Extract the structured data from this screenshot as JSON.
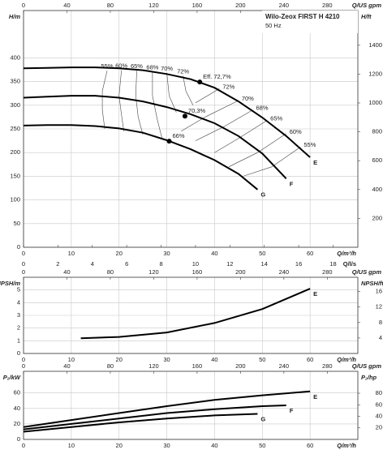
{
  "chart_data": [
    {
      "type": "line",
      "title": "Wilo-Zeox FIRST H 4210",
      "subtitle": "50 Hz",
      "ylabel": "H/m",
      "y2label": "H/ft",
      "xlabel": "Q/m³/h",
      "x2label": "Q/US gpm",
      "x3label": "Q/l/s",
      "xlim": [
        0,
        70
      ],
      "xticks": [
        0,
        10,
        20,
        30,
        40,
        50,
        60
      ],
      "x2lim": [
        0,
        308.2
      ],
      "x2ticks": [
        0,
        40,
        80,
        120,
        160,
        200,
        240,
        280
      ],
      "x3lim": [
        0,
        19.44
      ],
      "x3ticks": [
        0,
        2,
        4,
        6,
        8,
        10,
        12,
        14,
        16,
        18
      ],
      "ylim": [
        0,
        500
      ],
      "yticks": [
        0,
        50,
        100,
        150,
        200,
        250,
        300,
        350,
        400
      ],
      "y2lim": [
        0,
        1640.4
      ],
      "y2ticks": [
        200,
        400,
        600,
        800,
        1000,
        1200,
        1400
      ],
      "grid": true,
      "series": [
        {
          "name": "E",
          "color": "#000000",
          "x": [
            0,
            5,
            10,
            15,
            20,
            25,
            30,
            35,
            40,
            45,
            50,
            55,
            60
          ],
          "values": [
            378,
            379,
            380,
            380,
            378,
            374,
            366,
            355,
            337,
            308,
            274,
            235,
            190
          ]
        },
        {
          "name": "F",
          "color": "#000000",
          "x": [
            0,
            5,
            10,
            15,
            20,
            25,
            30,
            35,
            40,
            45,
            50,
            55
          ],
          "values": [
            316,
            318,
            320,
            320,
            316,
            308,
            296,
            281,
            262,
            235,
            198,
            145
          ]
        },
        {
          "name": "G",
          "color": "#000000",
          "x": [
            0,
            5,
            10,
            15,
            20,
            25,
            30,
            35,
            40,
            45,
            49
          ],
          "values": [
            257,
            258,
            258,
            256,
            251,
            242,
            226,
            207,
            184,
            155,
            122
          ]
        }
      ],
      "points": [
        {
          "label": "Eff. 72,7%",
          "x": 36.9,
          "y": 349
        },
        {
          "label": "70,3%",
          "x": 33.8,
          "y": 277
        },
        {
          "label": "66%",
          "x": 30.5,
          "y": 224
        }
      ],
      "efficiency_lines": [
        {
          "label": "55%",
          "x": [
            17.5,
            16.5,
            16.5,
            17
          ],
          "values": [
            373,
            330,
            290,
            250
          ]
        },
        {
          "label": "60%",
          "x": [
            20.5,
            20,
            20.5,
            21
          ],
          "values": [
            374,
            320,
            280,
            245
          ]
        },
        {
          "label": "65%",
          "x": [
            23.7,
            23.5,
            24,
            25
          ],
          "values": [
            373,
            320,
            275,
            238
          ]
        },
        {
          "label": "68%",
          "x": [
            27,
            27,
            28,
            29
          ],
          "values": [
            371,
            320,
            270,
            230
          ]
        },
        {
          "label": "70%",
          "x": [
            30,
            30.5,
            32
          ],
          "values": [
            368,
            320,
            285
          ]
        },
        {
          "label": "72%",
          "x": [
            33.4,
            34,
            35.5
          ],
          "values": [
            362,
            330,
            300
          ]
        },
        {
          "label": "72%",
          "x": [
            41,
            36
          ],
          "values": [
            335,
            305
          ]
        },
        {
          "label": "70%",
          "x": [
            45,
            38,
            33
          ],
          "values": [
            310,
            275,
            245
          ]
        },
        {
          "label": "68%",
          "x": [
            48,
            42,
            36
          ],
          "values": [
            290,
            255,
            225
          ]
        },
        {
          "label": "65%",
          "x": [
            51,
            45,
            40
          ],
          "values": [
            268,
            230,
            200
          ]
        },
        {
          "label": "60%",
          "x": [
            55,
            49,
            43
          ],
          "values": [
            240,
            200,
            170
          ]
        },
        {
          "label": "55%",
          "x": [
            58,
            52,
            46
          ],
          "values": [
            212,
            170,
            150
          ]
        }
      ]
    },
    {
      "type": "line",
      "ylabel": "NPSH/m",
      "y2label": "NPSH/ft",
      "xlabel": "Q/m³/h",
      "x2label": "Q/US gpm",
      "xlim": [
        0,
        70
      ],
      "xticks": [
        0,
        10,
        20,
        30,
        40,
        50,
        60
      ],
      "x2lim": [
        0,
        308.2
      ],
      "x2ticks": [
        0,
        40,
        80,
        120,
        160,
        200,
        240,
        280
      ],
      "ylim": [
        0,
        6
      ],
      "yticks": [
        0,
        1,
        2,
        3,
        4,
        5
      ],
      "y2lim": [
        0,
        19.69
      ],
      "y2ticks": [
        4,
        8,
        12,
        16
      ],
      "grid": true,
      "series": [
        {
          "name": "E",
          "color": "#000000",
          "x": [
            12,
            20,
            30,
            40,
            50,
            60
          ],
          "values": [
            1.2,
            1.3,
            1.65,
            2.4,
            3.5,
            5.1
          ]
        }
      ]
    },
    {
      "type": "line",
      "ylabel": "P₂/kW",
      "y2label": "P₂/hp",
      "xlabel": "Q/m³/h",
      "x2label": "Q/US gpm",
      "xlim": [
        0,
        70
      ],
      "xticks": [
        0,
        10,
        20,
        30,
        40,
        50,
        60
      ],
      "x2lim": [
        0,
        308.2
      ],
      "x2ticks": [
        0,
        40,
        80,
        120,
        160,
        200,
        240,
        280
      ],
      "ylim": [
        0,
        88
      ],
      "yticks": [
        0,
        20,
        40,
        60
      ],
      "y2lim": [
        0,
        118
      ],
      "y2ticks": [
        20,
        40,
        60,
        80
      ],
      "grid": true,
      "series": [
        {
          "name": "E",
          "color": "#000000",
          "x": [
            0,
            10,
            20,
            30,
            40,
            50,
            60
          ],
          "values": [
            16,
            25,
            34,
            43,
            51,
            57,
            62
          ]
        },
        {
          "name": "F",
          "color": "#000000",
          "x": [
            0,
            10,
            20,
            30,
            40,
            50,
            55
          ],
          "values": [
            13,
            20,
            27,
            34,
            39,
            43,
            44
          ]
        },
        {
          "name": "G",
          "color": "#000000",
          "x": [
            0,
            10,
            20,
            30,
            40,
            49
          ],
          "values": [
            10,
            16,
            22,
            27,
            31,
            33
          ]
        }
      ]
    }
  ]
}
